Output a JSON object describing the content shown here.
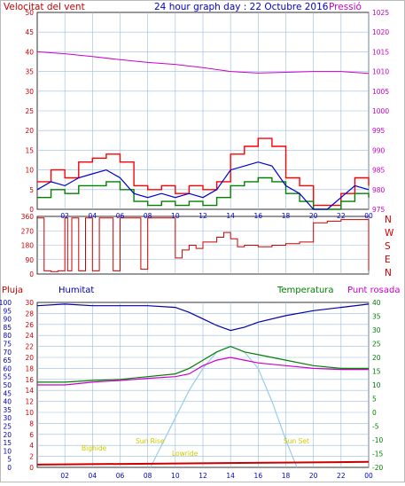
{
  "header": {
    "left": "Velocitat del vent",
    "center": "24 hour graph day : 22 Octubre 2016",
    "right": "Pressió"
  },
  "legend": {
    "pluja": "Pluja",
    "humitat": "Humitat",
    "temperatura": "Temperatura",
    "punt_rosada": "Punt rosada"
  },
  "dir_labels": [
    "N",
    "W",
    "S",
    "E",
    "N"
  ],
  "annotations": {
    "bighide": "Bighide",
    "sun_rise": "Sun Rise",
    "lowride": "Lowride",
    "sun_set": "Sun Set"
  },
  "colors": {
    "wind_gust": "#ff0000",
    "wind_avg": "#0000cc",
    "wind_min": "#008000",
    "pressure": "#cc00cc",
    "direction": "#cc0000",
    "humidity": "#0000aa",
    "temperature": "#008000",
    "dewpoint": "#cc00cc",
    "rain": "#cc0000",
    "solar": "#99ccee",
    "grid": "#99bbdd"
  },
  "chart_data": [
    {
      "type": "line",
      "x_ticks": [
        "02",
        "04",
        "06",
        "08",
        "10",
        "12",
        "14",
        "16",
        "18",
        "20",
        "22",
        "00"
      ],
      "ylim": [
        0,
        50
      ],
      "y_ticks": [
        "0",
        "5",
        "10",
        "15",
        "20",
        "25",
        "30",
        "35",
        "40",
        "45",
        "50"
      ],
      "y2lim": [
        975,
        1025
      ],
      "y2_ticks": [
        "975",
        "980",
        "985",
        "990",
        "995",
        "1000",
        "1005",
        "1010",
        "1015",
        "1020",
        "1025"
      ],
      "series": [
        {
          "key": "gust",
          "x": [
            0,
            1,
            2,
            3,
            4,
            5,
            6,
            7,
            8,
            9,
            10,
            11,
            12,
            13,
            14,
            15,
            16,
            17,
            18,
            19,
            20,
            21,
            22,
            23,
            24
          ],
          "values": [
            7,
            10,
            8,
            12,
            13,
            14,
            12,
            6,
            5,
            6,
            4,
            6,
            5,
            7,
            14,
            16,
            18,
            16,
            8,
            6,
            1,
            1,
            4,
            8,
            6
          ]
        },
        {
          "key": "avg",
          "x": [
            0,
            1,
            2,
            3,
            4,
            5,
            6,
            7,
            8,
            9,
            10,
            11,
            12,
            13,
            14,
            15,
            16,
            17,
            18,
            19,
            20,
            21,
            22,
            23,
            24
          ],
          "values": [
            5,
            7,
            6,
            8,
            9,
            10,
            8,
            4,
            3,
            4,
            3,
            4,
            3,
            5,
            10,
            11,
            12,
            11,
            6,
            4,
            0,
            0,
            3,
            6,
            5
          ]
        },
        {
          "key": "min",
          "x": [
            0,
            1,
            2,
            3,
            4,
            5,
            6,
            7,
            8,
            9,
            10,
            11,
            12,
            13,
            14,
            15,
            16,
            17,
            18,
            19,
            20,
            21,
            22,
            23,
            24
          ],
          "values": [
            3,
            5,
            4,
            6,
            6,
            7,
            5,
            2,
            1,
            2,
            1,
            2,
            1,
            3,
            6,
            7,
            8,
            7,
            4,
            2,
            0,
            0,
            2,
            4,
            3
          ]
        },
        {
          "key": "pressure",
          "x": [
            0,
            2,
            4,
            6,
            8,
            10,
            12,
            14,
            16,
            18,
            20,
            22,
            24
          ],
          "values": [
            1015,
            1014.5,
            1013.8,
            1013,
            1012.3,
            1011.8,
            1011,
            1010,
            1009.6,
            1009.8,
            1010,
            1010,
            1009.5
          ]
        }
      ]
    },
    {
      "type": "scatter",
      "ylim": [
        0,
        360
      ],
      "y_ticks": [
        "0",
        "90",
        "180",
        "270",
        "360"
      ],
      "series": [
        {
          "key": "direction",
          "x": [
            0,
            0.5,
            1,
            1.5,
            2,
            2.2,
            2.5,
            3,
            3.5,
            4,
            4.5,
            5,
            5.5,
            6,
            6.5,
            7,
            7.5,
            8,
            8.5,
            9,
            9.5,
            10,
            10.5,
            11,
            11.5,
            12,
            12.5,
            13,
            13.5,
            14,
            14.5,
            15,
            16,
            17,
            18,
            19,
            20,
            21,
            22,
            23,
            24
          ],
          "values": [
            350,
            20,
            15,
            20,
            350,
            20,
            350,
            20,
            350,
            20,
            350,
            350,
            20,
            350,
            350,
            350,
            30,
            350,
            350,
            350,
            350,
            100,
            150,
            180,
            160,
            200,
            200,
            230,
            260,
            220,
            170,
            180,
            170,
            180,
            190,
            200,
            320,
            330,
            340,
            340,
            20
          ]
        }
      ]
    },
    {
      "type": "line",
      "x_ticks": [
        "02",
        "04",
        "06",
        "08",
        "10",
        "12",
        "14",
        "16",
        "18",
        "20",
        "22",
        "00"
      ],
      "ylim": [
        0,
        30
      ],
      "y_ticks": [
        "0",
        "2",
        "4",
        "6",
        "8",
        "10",
        "12",
        "14",
        "16",
        "18",
        "20",
        "22",
        "24",
        "26",
        "28",
        "30"
      ],
      "humidity_ylim": [
        0,
        100
      ],
      "humidity_ticks": [
        "0",
        "5",
        "10",
        "15",
        "20",
        "25",
        "30",
        "35",
        "40",
        "45",
        "50",
        "55",
        "60",
        "65",
        "70",
        "75",
        "80",
        "85",
        "90",
        "95",
        "100"
      ],
      "y2lim": [
        -20,
        40
      ],
      "y2_ticks": [
        "-20",
        "-15",
        "-10",
        "-5",
        "0",
        "5",
        "10",
        "15",
        "20",
        "25",
        "30",
        "35",
        "40"
      ],
      "series": [
        {
          "key": "humidity",
          "x": [
            0,
            2,
            4,
            6,
            8,
            10,
            11,
            12,
            13,
            14,
            15,
            16,
            18,
            20,
            22,
            24
          ],
          "values": [
            98,
            99,
            98,
            98,
            98,
            97,
            94,
            90,
            86,
            83,
            85,
            88,
            92,
            95,
            97,
            99
          ]
        },
        {
          "key": "temperature",
          "x": [
            0,
            2,
            4,
            6,
            8,
            10,
            11,
            12,
            13,
            14,
            15,
            16,
            18,
            20,
            22,
            24
          ],
          "values": [
            15.5,
            15.5,
            15.8,
            16,
            16.5,
            17,
            18,
            19.5,
            21,
            22,
            21,
            20.5,
            19.5,
            18.5,
            18,
            18
          ]
        },
        {
          "key": "dewpoint",
          "x": [
            0,
            2,
            4,
            6,
            8,
            10,
            11,
            12,
            13,
            14,
            15,
            16,
            18,
            20,
            22,
            24
          ],
          "values": [
            15,
            15,
            15.5,
            15.8,
            16.2,
            16.5,
            17,
            18.5,
            19.5,
            20,
            19.5,
            19,
            18.5,
            18,
            17.8,
            17.8
          ]
        },
        {
          "key": "solar",
          "x": [
            8.2,
            9,
            10,
            11,
            12,
            13,
            14,
            15,
            16,
            17,
            18,
            18.8
          ],
          "values": [
            0,
            4,
            9,
            14,
            18,
            21,
            22,
            21,
            18,
            12,
            5,
            0
          ]
        },
        {
          "key": "rain",
          "x": [
            0,
            24
          ],
          "values": [
            0.5,
            1
          ]
        }
      ]
    }
  ]
}
